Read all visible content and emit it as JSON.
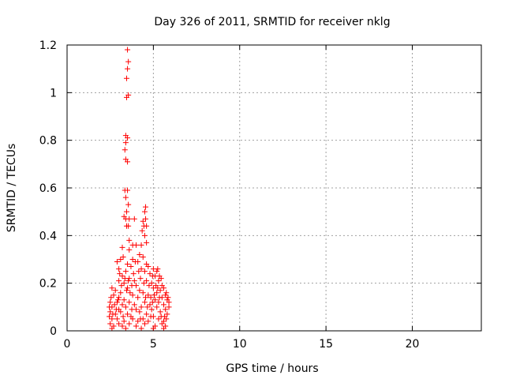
{
  "chart_data": {
    "type": "scatter",
    "title": "Day 326 of 2011, SRMTID for receiver nklg",
    "xlabel": "GPS time / hours",
    "ylabel": "SRMTID / TECUs",
    "xlim": [
      0,
      24
    ],
    "ylim": [
      0,
      1.2
    ],
    "x_ticks": [
      "0",
      "5",
      "10",
      "15",
      "20"
    ],
    "y_ticks": [
      "0",
      "0.2",
      "0.4",
      "0.6",
      "0.8",
      "1",
      "1.2"
    ],
    "grid": true,
    "legend": "none",
    "marker": "+",
    "colors": {
      "series": "#ff0000",
      "grid": "#a0a0a0",
      "axis": "#000000"
    },
    "series": [
      {
        "points": [
          [
            3.5,
            1.18
          ],
          [
            3.55,
            1.13
          ],
          [
            3.5,
            1.1
          ],
          [
            3.45,
            1.06
          ],
          [
            3.55,
            0.99
          ],
          [
            3.45,
            0.98
          ],
          [
            3.4,
            0.82
          ],
          [
            3.5,
            0.81
          ],
          [
            3.4,
            0.79
          ],
          [
            3.35,
            0.76
          ],
          [
            3.4,
            0.72
          ],
          [
            3.5,
            0.71
          ],
          [
            3.35,
            0.59
          ],
          [
            3.5,
            0.59
          ],
          [
            3.4,
            0.56
          ],
          [
            3.55,
            0.53
          ],
          [
            3.45,
            0.5
          ],
          [
            4.55,
            0.52
          ],
          [
            4.5,
            0.5
          ],
          [
            3.3,
            0.48
          ],
          [
            3.4,
            0.47
          ],
          [
            3.6,
            0.47
          ],
          [
            3.9,
            0.47
          ],
          [
            4.4,
            0.46
          ],
          [
            3.45,
            0.44
          ],
          [
            3.55,
            0.44
          ],
          [
            4.45,
            0.44
          ],
          [
            4.35,
            0.42
          ],
          [
            4.5,
            0.4
          ],
          [
            3.6,
            0.38
          ],
          [
            4.0,
            0.36
          ],
          [
            3.8,
            0.36
          ],
          [
            4.3,
            0.36
          ],
          [
            4.6,
            0.37
          ],
          [
            3.2,
            0.35
          ],
          [
            3.6,
            0.34
          ],
          [
            4.2,
            0.32
          ],
          [
            3.25,
            0.31
          ],
          [
            3.1,
            0.3
          ],
          [
            3.8,
            0.3
          ],
          [
            4.4,
            0.31
          ],
          [
            2.9,
            0.29
          ],
          [
            3.5,
            0.28
          ],
          [
            3.7,
            0.27
          ],
          [
            4.1,
            0.29
          ],
          [
            4.6,
            0.28
          ],
          [
            3.0,
            0.26
          ],
          [
            3.4,
            0.25
          ],
          [
            4.3,
            0.26
          ],
          [
            4.5,
            0.25
          ],
          [
            5.0,
            0.26
          ],
          [
            5.2,
            0.25
          ],
          [
            3.2,
            0.23
          ],
          [
            3.6,
            0.22
          ],
          [
            4.8,
            0.24
          ],
          [
            5.1,
            0.23
          ],
          [
            3.0,
            0.21
          ],
          [
            3.3,
            0.2
          ],
          [
            3.9,
            0.21
          ],
          [
            4.0,
            0.19
          ],
          [
            4.6,
            0.21
          ],
          [
            4.9,
            0.2
          ],
          [
            5.3,
            0.21
          ],
          [
            5.5,
            0.19
          ],
          [
            2.6,
            0.18
          ],
          [
            2.8,
            0.17
          ],
          [
            3.1,
            0.16
          ],
          [
            3.5,
            0.18
          ],
          [
            4.2,
            0.17
          ],
          [
            4.4,
            0.16
          ],
          [
            5.0,
            0.18
          ],
          [
            5.2,
            0.16
          ],
          [
            5.4,
            0.17
          ],
          [
            5.7,
            0.15
          ],
          [
            2.7,
            0.15
          ],
          [
            3.0,
            0.14
          ],
          [
            3.3,
            0.13
          ],
          [
            3.8,
            0.15
          ],
          [
            4.1,
            0.14
          ],
          [
            4.7,
            0.15
          ],
          [
            5.1,
            0.13
          ],
          [
            5.5,
            0.14
          ],
          [
            5.8,
            0.13
          ],
          [
            2.5,
            0.12
          ],
          [
            2.9,
            0.12
          ],
          [
            3.2,
            0.11
          ],
          [
            3.6,
            0.12
          ],
          [
            3.9,
            0.11
          ],
          [
            4.5,
            0.12
          ],
          [
            4.8,
            0.11
          ],
          [
            5.3,
            0.12
          ],
          [
            5.6,
            0.11
          ],
          [
            5.9,
            0.12
          ],
          [
            2.6,
            0.1
          ],
          [
            3.0,
            0.09
          ],
          [
            3.4,
            0.1
          ],
          [
            4.0,
            0.09
          ],
          [
            4.3,
            0.1
          ],
          [
            4.9,
            0.09
          ],
          [
            5.2,
            0.1
          ],
          [
            5.7,
            0.09
          ],
          [
            2.5,
            0.08
          ],
          [
            2.8,
            0.07
          ],
          [
            3.1,
            0.08
          ],
          [
            3.5,
            0.07
          ],
          [
            3.7,
            0.06
          ],
          [
            4.2,
            0.08
          ],
          [
            4.6,
            0.07
          ],
          [
            5.0,
            0.06
          ],
          [
            5.4,
            0.08
          ],
          [
            5.8,
            0.07
          ],
          [
            2.6,
            0.05
          ],
          [
            2.9,
            0.05
          ],
          [
            3.3,
            0.04
          ],
          [
            3.8,
            0.05
          ],
          [
            4.1,
            0.04
          ],
          [
            4.4,
            0.05
          ],
          [
            4.7,
            0.04
          ],
          [
            5.3,
            0.05
          ],
          [
            5.6,
            0.04
          ],
          [
            2.5,
            0.03
          ],
          [
            2.7,
            0.02
          ],
          [
            3.0,
            0.03
          ],
          [
            3.2,
            0.02
          ],
          [
            3.6,
            0.03
          ],
          [
            4.0,
            0.02
          ],
          [
            4.5,
            0.03
          ],
          [
            5.1,
            0.02
          ],
          [
            5.5,
            0.03
          ],
          [
            5.7,
            0.02
          ],
          [
            2.6,
            0.01
          ],
          [
            3.4,
            0.01
          ],
          [
            4.3,
            0.01
          ],
          [
            5.0,
            0.01
          ],
          [
            5.6,
            0.01
          ],
          [
            4.55,
            0.47
          ],
          [
            4.6,
            0.44
          ],
          [
            4.7,
            0.27
          ],
          [
            4.95,
            0.23
          ],
          [
            5.25,
            0.26
          ],
          [
            5.35,
            0.23
          ],
          [
            5.45,
            0.22
          ],
          [
            5.6,
            0.18
          ],
          [
            5.75,
            0.16
          ],
          [
            5.85,
            0.14
          ],
          [
            5.9,
            0.1
          ],
          [
            5.65,
            0.06
          ],
          [
            4.85,
            0.14
          ],
          [
            4.95,
            0.12
          ],
          [
            5.05,
            0.15
          ],
          [
            5.15,
            0.19
          ],
          [
            5.25,
            0.18
          ],
          [
            5.35,
            0.14
          ],
          [
            4.75,
            0.19
          ],
          [
            4.65,
            0.1
          ],
          [
            4.55,
            0.14
          ],
          [
            4.45,
            0.2
          ],
          [
            4.25,
            0.22
          ],
          [
            4.15,
            0.25
          ],
          [
            3.95,
            0.29
          ],
          [
            3.85,
            0.24
          ],
          [
            3.75,
            0.19
          ],
          [
            3.65,
            0.16
          ],
          [
            3.55,
            0.21
          ],
          [
            3.45,
            0.17
          ],
          [
            3.35,
            0.22
          ],
          [
            3.15,
            0.19
          ],
          [
            3.05,
            0.24
          ],
          [
            2.95,
            0.13
          ],
          [
            2.85,
            0.09
          ],
          [
            2.75,
            0.11
          ],
          [
            2.65,
            0.07
          ],
          [
            2.55,
            0.14
          ],
          [
            2.45,
            0.06
          ],
          [
            2.45,
            0.1
          ],
          [
            3.25,
            0.06
          ],
          [
            3.75,
            0.09
          ],
          [
            4.25,
            0.05
          ],
          [
            4.85,
            0.06
          ],
          [
            5.45,
            0.06
          ],
          [
            5.75,
            0.05
          ]
        ]
      }
    ]
  }
}
